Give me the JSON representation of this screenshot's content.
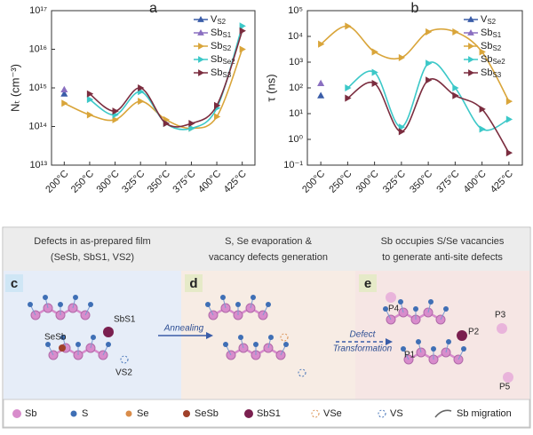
{
  "chart_data": [
    {
      "type": "line",
      "panel": "a",
      "y_label": "Nₜ (cm⁻³)",
      "log_y": true,
      "categories": [
        "200°C",
        "250°C",
        "300°C",
        "325°C",
        "350°C",
        "375°C",
        "400°C",
        "425°C"
      ],
      "ylim": [
        10000000000000.0,
        1e+17
      ],
      "yticks": [
        {
          "value": 10000000000000.0,
          "label": "10¹³"
        },
        {
          "value": 100000000000000.0,
          "label": "10¹⁴"
        },
        {
          "value": 1000000000000000.0,
          "label": "10¹⁵"
        },
        {
          "value": 1e+16,
          "label": "10¹⁶"
        },
        {
          "value": 1e+17,
          "label": "10¹⁷"
        }
      ],
      "series": [
        {
          "name": "V",
          "name_sub": "S2",
          "color": "#3a5da8",
          "marker": "triangle-up",
          "values": [
            700000000000000.0,
            null,
            null,
            null,
            null,
            null,
            null,
            null
          ]
        },
        {
          "name": "Sb",
          "name_sub": "S1",
          "color": "#8a6fc0",
          "marker": "triangle-up",
          "values": [
            900000000000000.0,
            null,
            null,
            null,
            null,
            null,
            null,
            null
          ]
        },
        {
          "name": "Sb",
          "name_sub": "S2",
          "color": "#d9a53a",
          "marker": "triangle-right",
          "values": [
            400000000000000.0,
            200000000000000.0,
            150000000000000.0,
            450000000000000.0,
            150000000000000.0,
            90000000000000.0,
            180000000000000.0,
            1e+16
          ]
        },
        {
          "name": "Sb",
          "name_sub": "Se2",
          "color": "#3cc8c8",
          "marker": "triangle-right",
          "values": [
            null,
            500000000000000.0,
            200000000000000.0,
            800000000000000.0,
            120000000000000.0,
            90000000000000.0,
            300000000000000.0,
            4e+16
          ]
        },
        {
          "name": "Sb",
          "name_sub": "S3",
          "color": "#7b2d3f",
          "marker": "triangle-right",
          "values": [
            null,
            700000000000000.0,
            250000000000000.0,
            1000000000000000.0,
            120000000000000.0,
            120000000000000.0,
            350000000000000.0,
            3e+16
          ]
        }
      ]
    },
    {
      "type": "line",
      "panel": "b",
      "y_label": "τ (ns)",
      "log_y": true,
      "categories": [
        "200°C",
        "250°C",
        "300°C",
        "325°C",
        "350°C",
        "375°C",
        "400°C",
        "425°C"
      ],
      "ylim": [
        0.1,
        100000
      ],
      "yticks": [
        {
          "value": 0.1,
          "label": "10⁻¹"
        },
        {
          "value": 1,
          "label": "10⁰"
        },
        {
          "value": 10,
          "label": "10¹"
        },
        {
          "value": 100,
          "label": "10²"
        },
        {
          "value": 1000,
          "label": "10³"
        },
        {
          "value": 10000,
          "label": "10⁴"
        },
        {
          "value": 100000,
          "label": "10⁵"
        }
      ],
      "series": [
        {
          "name": "V",
          "name_sub": "S2",
          "color": "#3a5da8",
          "marker": "triangle-up",
          "values": [
            50,
            null,
            null,
            null,
            null,
            null,
            null,
            null
          ]
        },
        {
          "name": "Sb",
          "name_sub": "S1",
          "color": "#8a6fc0",
          "marker": "triangle-up",
          "values": [
            150,
            null,
            null,
            null,
            null,
            null,
            null,
            null
          ]
        },
        {
          "name": "Sb",
          "name_sub": "S2",
          "color": "#d9a53a",
          "marker": "triangle-right",
          "values": [
            5000,
            25000,
            2500,
            1500,
            15000,
            15000,
            2500,
            30
          ]
        },
        {
          "name": "Sb",
          "name_sub": "Se2",
          "color": "#3cc8c8",
          "marker": "triangle-right",
          "values": [
            null,
            100,
            400,
            3,
            900,
            100,
            2.5,
            6
          ]
        },
        {
          "name": "Sb",
          "name_sub": "S3",
          "color": "#7b2d3f",
          "marker": "triangle-right",
          "values": [
            null,
            40,
            150,
            2,
            200,
            50,
            15,
            0.3
          ]
        }
      ]
    }
  ],
  "diagram": {
    "panels": [
      {
        "letter": "c",
        "header": [
          "Defects in as-prepared film",
          "(SeSb, SbS1, VS2)"
        ]
      },
      {
        "letter": "d",
        "header": [
          "S, Se evaporation &",
          "vacancy defects generation"
        ]
      },
      {
        "letter": "e",
        "header": [
          "Sb occupies S/Se vacancies",
          "to generate anti-site defects"
        ]
      }
    ],
    "labels": {
      "sb_s1": "SbS1",
      "se_sb": "SeSb",
      "v_s2": "VS2",
      "annealing": "Annealing",
      "defect": "Defect",
      "transformation": "Transformation",
      "p1": "P1",
      "p2": "P2",
      "p3": "P3",
      "p4": "P4",
      "p5": "P5"
    },
    "legend": [
      "Sb",
      "S",
      "Se",
      "SeSb",
      "SbS1",
      "VSe",
      "VS",
      "Sb migration"
    ]
  }
}
